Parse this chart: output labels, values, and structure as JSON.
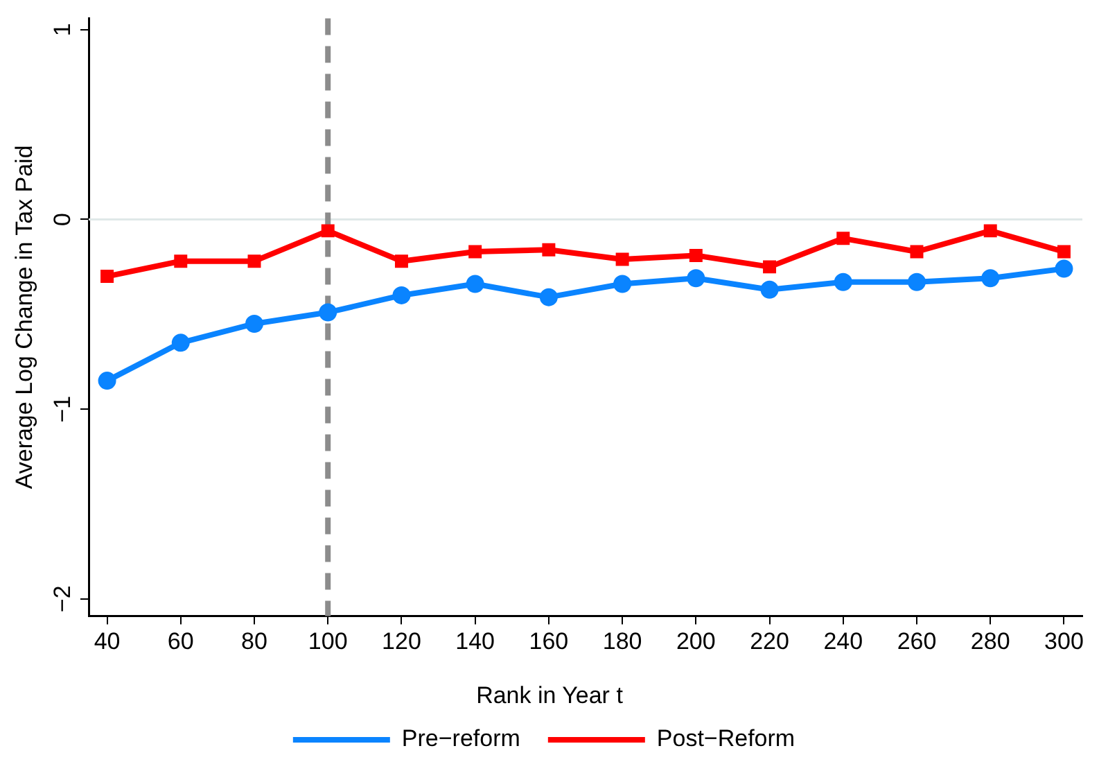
{
  "chart_data": {
    "type": "line",
    "xlabel": "Rank in Year t",
    "ylabel": "Average Log Change in Tax Paid",
    "x": [
      40,
      60,
      80,
      100,
      120,
      140,
      160,
      180,
      200,
      220,
      240,
      260,
      280,
      300
    ],
    "series": [
      {
        "name": "Pre−reform",
        "color": "#0a84ff",
        "marker": "circle",
        "values": [
          -0.85,
          -0.65,
          -0.55,
          -0.49,
          -0.4,
          -0.34,
          -0.41,
          -0.34,
          -0.31,
          -0.37,
          -0.33,
          -0.33,
          -0.31,
          -0.26
        ]
      },
      {
        "name": "Post−Reform",
        "color": "#ff0000",
        "marker": "square",
        "values": [
          -0.3,
          -0.22,
          -0.22,
          -0.06,
          -0.22,
          -0.17,
          -0.16,
          -0.21,
          -0.19,
          -0.25,
          -0.1,
          -0.17,
          -0.06,
          -0.17
        ]
      }
    ],
    "xlim": [
      35,
      305
    ],
    "xticks": [
      40,
      60,
      80,
      100,
      120,
      140,
      160,
      180,
      200,
      220,
      240,
      260,
      280,
      300
    ],
    "ylim": [
      -2.09,
      1.06
    ],
    "yticks": [
      {
        "value": -2,
        "label": "−2"
      },
      {
        "value": -1,
        "label": "−1"
      },
      0,
      1
    ],
    "ref_lines": [
      {
        "axis": "y",
        "value": 0,
        "color": "#dfe8e8",
        "line_style": "solid"
      },
      {
        "axis": "x",
        "value": 100,
        "color": "#8c8c8c",
        "line_style": "dashed"
      }
    ],
    "legend": "bottom",
    "line_style": "solid"
  }
}
